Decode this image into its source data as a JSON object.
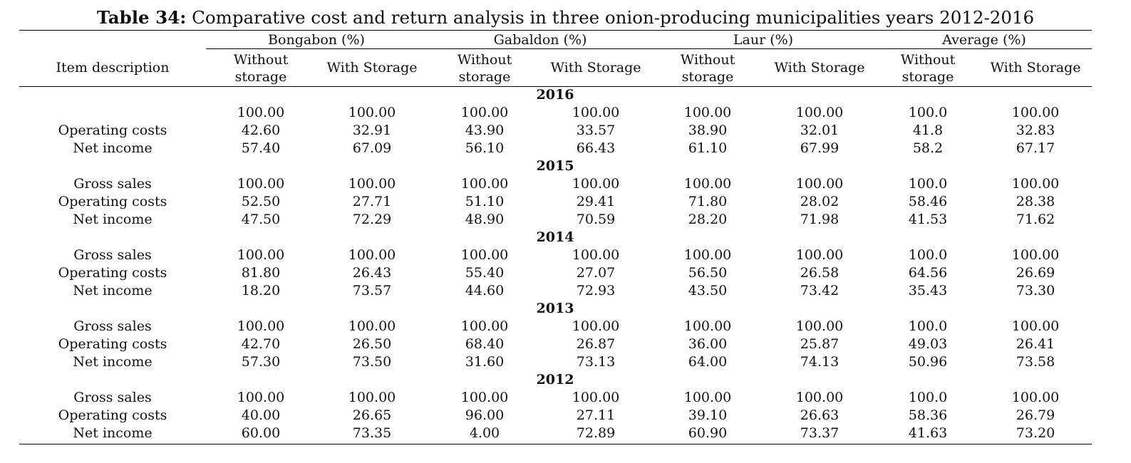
{
  "title": {
    "bold": "Table 34:",
    "rest": " Comparative cost and return analysis in three onion-producing municipalities years 2012-2016"
  },
  "header": {
    "item_col": "Item description",
    "groups": [
      "Bongabon (%)",
      "Gabaldon (%)",
      "Laur (%)",
      "Average (%)"
    ],
    "sub_without": [
      "Without",
      "storage"
    ],
    "sub_with": "With Storage"
  },
  "sections": [
    {
      "year": "2016",
      "rows": [
        {
          "label": "",
          "values": [
            "100.00",
            "100.00",
            "100.00",
            "100.00",
            "100.00",
            "100.00",
            "100.0",
            "100.00"
          ]
        },
        {
          "label": "Operating costs",
          "values": [
            "42.60",
            "32.91",
            "43.90",
            "33.57",
            "38.90",
            "32.01",
            "41.8",
            "32.83"
          ]
        },
        {
          "label": "Net income",
          "values": [
            "57.40",
            "67.09",
            "56.10",
            "66.43",
            "61.10",
            "67.99",
            "58.2",
            "67.17"
          ]
        }
      ]
    },
    {
      "year": "2015",
      "rows": [
        {
          "label": "Gross sales",
          "values": [
            "100.00",
            "100.00",
            "100.00",
            "100.00",
            "100.00",
            "100.00",
            "100.0",
            "100.00"
          ]
        },
        {
          "label": "Operating costs",
          "values": [
            "52.50",
            "27.71",
            "51.10",
            "29.41",
            "71.80",
            "28.02",
            "58.46",
            "28.38"
          ]
        },
        {
          "label": "Net income",
          "values": [
            "47.50",
            "72.29",
            "48.90",
            "70.59",
            "28.20",
            "71.98",
            "41.53",
            "71.62"
          ]
        }
      ]
    },
    {
      "year": "2014",
      "rows": [
        {
          "label": "Gross sales",
          "values": [
            "100.00",
            "100.00",
            "100.00",
            "100.00",
            "100.00",
            "100.00",
            "100.0",
            "100.00"
          ]
        },
        {
          "label": "Operating costs",
          "values": [
            "81.80",
            "26.43",
            "55.40",
            "27.07",
            "56.50",
            "26.58",
            "64.56",
            "26.69"
          ]
        },
        {
          "label": "Net income",
          "values": [
            "18.20",
            "73.57",
            "44.60",
            "72.93",
            "43.50",
            "73.42",
            "35.43",
            "73.30"
          ]
        }
      ]
    },
    {
      "year": "2013",
      "rows": [
        {
          "label": "Gross sales",
          "values": [
            "100.00",
            "100.00",
            "100.00",
            "100.00",
            "100.00",
            "100.00",
            "100.0",
            "100.00"
          ]
        },
        {
          "label": "Operating costs",
          "values": [
            "42.70",
            "26.50",
            "68.40",
            "26.87",
            "36.00",
            "25.87",
            "49.03",
            "26.41"
          ]
        },
        {
          "label": "Net income",
          "values": [
            "57.30",
            "73.50",
            "31.60",
            "73.13",
            "64.00",
            "74.13",
            "50.96",
            "73.58"
          ]
        }
      ]
    },
    {
      "year": "2012",
      "rows": [
        {
          "label": "Gross sales",
          "values": [
            "100.00",
            "100.00",
            "100.00",
            "100.00",
            "100.00",
            "100.00",
            "100.0",
            "100.00"
          ]
        },
        {
          "label": "Operating costs",
          "values": [
            "40.00",
            "26.65",
            "96.00",
            "27.11",
            "39.10",
            "26.63",
            "58.36",
            "26.79"
          ]
        },
        {
          "label": "Net income",
          "values": [
            "60.00",
            "73.35",
            "4.00",
            "72.89",
            "60.90",
            "73.37",
            "41.63",
            "73.20"
          ]
        }
      ]
    }
  ]
}
